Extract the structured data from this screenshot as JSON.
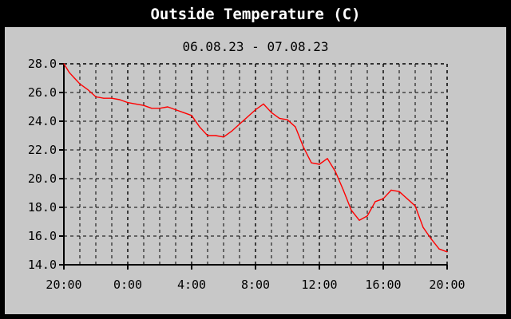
{
  "chart_data": {
    "type": "line",
    "title": "Outside Temperature (C)",
    "subtitle": "06.08.23 - 07.08.23",
    "xlabel": "",
    "ylabel": "",
    "x_ticks": [
      "20:00",
      "0:00",
      "4:00",
      "8:00",
      "12:00",
      "16:00",
      "20:00"
    ],
    "y_ticks": [
      "28.0",
      "26.0",
      "24.0",
      "22.0",
      "20.0",
      "18.0",
      "16.0",
      "14.0"
    ],
    "ylim": [
      14,
      28
    ],
    "grid": true,
    "line_color": "#ff0000",
    "series": [
      {
        "x": [
          "20:00",
          "20:20",
          "20:40",
          "21:00",
          "21:30",
          "22:00",
          "22:30",
          "23:00",
          "23:30",
          "0:00",
          "0:30",
          "1:00",
          "1:30",
          "2:00",
          "2:30",
          "3:00",
          "3:30",
          "4:00",
          "4:30",
          "5:00",
          "5:30",
          "6:00",
          "6:30",
          "7:00",
          "7:30",
          "8:00",
          "8:30",
          "9:00",
          "9:30",
          "10:00",
          "10:30",
          "11:00",
          "11:30",
          "12:00",
          "12:30",
          "13:00",
          "13:30",
          "14:00",
          "14:30",
          "15:00",
          "15:30",
          "16:00",
          "16:30",
          "17:00",
          "17:30",
          "18:00",
          "18:30",
          "19:00",
          "19:30",
          "20:00"
        ],
        "values": [
          28.0,
          27.4,
          27.0,
          26.6,
          26.2,
          25.7,
          25.6,
          25.6,
          25.5,
          25.3,
          25.2,
          25.1,
          24.9,
          24.9,
          25.0,
          24.8,
          24.6,
          24.4,
          23.6,
          23.0,
          23.0,
          22.9,
          23.3,
          23.8,
          24.3,
          24.8,
          25.2,
          24.6,
          24.2,
          24.1,
          23.6,
          22.2,
          21.1,
          21.0,
          21.4,
          20.5,
          19.2,
          17.8,
          17.1,
          17.4,
          18.4,
          18.6,
          19.2,
          19.1,
          18.6,
          18.1,
          16.6,
          15.8,
          15.1,
          14.9
        ]
      }
    ]
  }
}
